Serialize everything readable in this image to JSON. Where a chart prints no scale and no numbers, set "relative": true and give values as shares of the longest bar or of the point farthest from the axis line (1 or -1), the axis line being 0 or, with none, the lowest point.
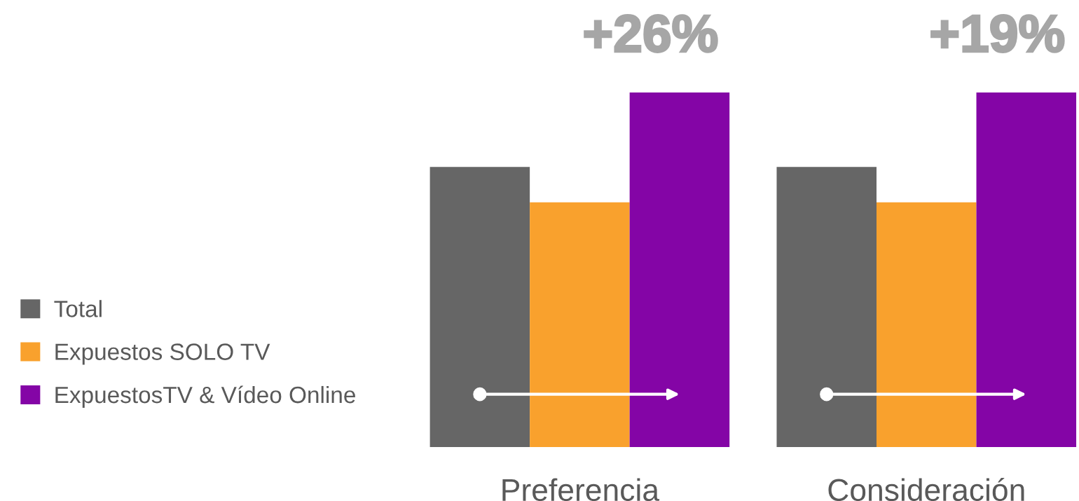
{
  "chart_data": {
    "type": "bar",
    "relative": true,
    "categories": [
      "Preferencia",
      "Consideración"
    ],
    "legend": "left",
    "annotations": [
      "+26%",
      "+19%"
    ],
    "series": [
      {
        "name": "Total",
        "color": "#666666",
        "values": [
          0.79,
          0.79
        ]
      },
      {
        "name": "Expuestos SOLO TV",
        "color": "#f9a12d",
        "values": [
          0.69,
          0.69
        ]
      },
      {
        "name": "ExpuestosTV & Vídeo Online",
        "color": "#8405a6",
        "values": [
          1,
          1
        ]
      }
    ]
  }
}
